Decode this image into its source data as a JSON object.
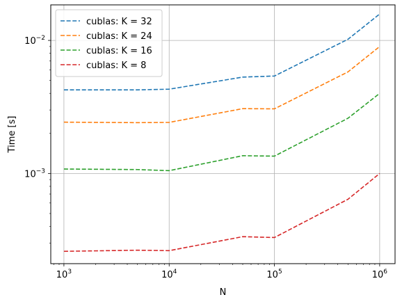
{
  "chart_data": {
    "type": "line",
    "title": "",
    "xlabel": "N",
    "ylabel": "Time [s]",
    "xscale": "log",
    "yscale": "log",
    "xlim": [
      750,
      1400000
    ],
    "ylim": [
      0.00021,
      0.0185
    ],
    "grid": true,
    "legend_position": "top-left",
    "x_ticks": [
      {
        "base": "10",
        "exp": "3",
        "value": 1000
      },
      {
        "base": "10",
        "exp": "4",
        "value": 10000
      },
      {
        "base": "10",
        "exp": "5",
        "value": 100000
      },
      {
        "base": "10",
        "exp": "6",
        "value": 1000000
      }
    ],
    "y_ticks": [
      {
        "base": "10",
        "exp": "−3",
        "value": 0.001
      },
      {
        "base": "10",
        "exp": "−2",
        "value": 0.01
      }
    ],
    "x": [
      1000,
      5000,
      10000,
      50000,
      100000,
      500000,
      1000000
    ],
    "series": [
      {
        "name": "cublas: K = 32",
        "color": "#1f77b4",
        "values": [
          0.00425,
          0.00425,
          0.0043,
          0.0053,
          0.0054,
          0.0102,
          0.0158
        ]
      },
      {
        "name": "cublas: K = 24",
        "color": "#ff7f0e",
        "values": [
          0.00243,
          0.00241,
          0.00242,
          0.00307,
          0.00306,
          0.0058,
          0.009
        ]
      },
      {
        "name": "cublas: K = 16",
        "color": "#2ca02c",
        "values": [
          0.00108,
          0.00107,
          0.00105,
          0.00136,
          0.00135,
          0.0026,
          0.004
        ]
      },
      {
        "name": "cublas: K = 8",
        "color": "#d62728",
        "values": [
          0.00026,
          0.000265,
          0.000263,
          0.000335,
          0.00033,
          0.00064,
          0.001
        ]
      }
    ]
  }
}
